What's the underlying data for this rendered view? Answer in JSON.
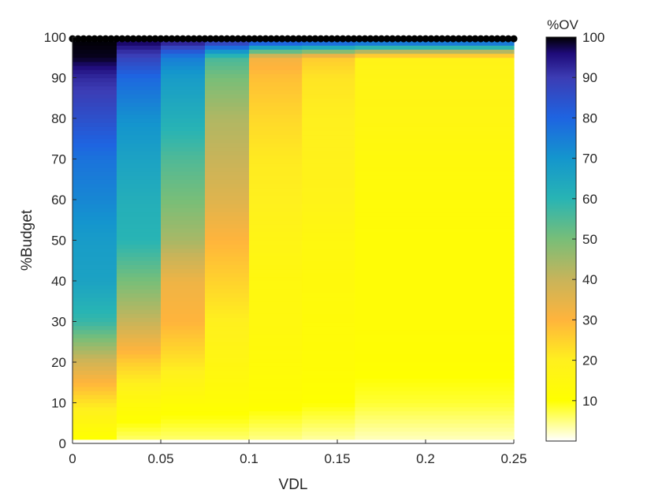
{
  "chart_data": {
    "type": "heatmap",
    "title": "",
    "xlabel": "VDL",
    "ylabel": "%Budget",
    "xlim": [
      0,
      0.25
    ],
    "ylim": [
      0,
      100
    ],
    "x_ticks": [
      0,
      0.05,
      0.1,
      0.15,
      0.2,
      0.25
    ],
    "x_tick_labels": [
      "0",
      "0.05",
      "0.1",
      "0.15",
      "0.2",
      "0.25"
    ],
    "y_ticks": [
      0,
      10,
      20,
      30,
      40,
      50,
      60,
      70,
      80,
      90,
      100
    ],
    "y_tick_labels": [
      "0",
      "10",
      "20",
      "30",
      "40",
      "50",
      "60",
      "70",
      "80",
      "90",
      "100"
    ],
    "colorbar": {
      "title": "%OV",
      "range": [
        0,
        100
      ],
      "ticks": [
        10,
        20,
        30,
        40,
        50,
        60,
        70,
        80,
        90,
        100
      ],
      "tick_labels": [
        "10",
        "20",
        "30",
        "40",
        "50",
        "60",
        "70",
        "80",
        "90",
        "100"
      ],
      "colormap_stops": [
        {
          "value": 0,
          "color": "#ffffff"
        },
        {
          "value": 10,
          "color": "#ffff00"
        },
        {
          "value": 20,
          "color": "#fff01e"
        },
        {
          "value": 30,
          "color": "#ffb43c"
        },
        {
          "value": 40,
          "color": "#c8b45a"
        },
        {
          "value": 50,
          "color": "#78be78"
        },
        {
          "value": 60,
          "color": "#28b4b4"
        },
        {
          "value": 70,
          "color": "#1496cd"
        },
        {
          "value": 80,
          "color": "#1e64e1"
        },
        {
          "value": 90,
          "color": "#3c3cb4"
        },
        {
          "value": 96,
          "color": "#1e0a78"
        },
        {
          "value": 100,
          "color": "#000000"
        }
      ]
    },
    "vdl_bins": [
      0,
      0.025,
      0.05,
      0.075,
      0.1,
      0.13,
      0.16,
      0.25
    ],
    "ov_matrix_rows_by_budget_step_10": [
      {
        "budget": 0,
        "ov": [
          8,
          5,
          5,
          5,
          4,
          3,
          2
        ]
      },
      {
        "budget": 10,
        "ov": [
          22,
          14,
          12,
          12,
          11,
          10,
          8
        ]
      },
      {
        "budget": 20,
        "ov": [
          38,
          26,
          22,
          16,
          13,
          12,
          11
        ]
      },
      {
        "budget": 30,
        "ov": [
          58,
          40,
          30,
          20,
          15,
          13,
          12
        ]
      },
      {
        "budget": 40,
        "ov": [
          66,
          50,
          33,
          25,
          15,
          14,
          12
        ]
      },
      {
        "budget": 50,
        "ov": [
          68,
          60,
          44,
          30,
          17,
          15,
          12
        ]
      },
      {
        "budget": 60,
        "ov": [
          73,
          62,
          50,
          36,
          20,
          18,
          13
        ]
      },
      {
        "budget": 70,
        "ov": [
          77,
          66,
          55,
          40,
          21,
          19,
          14
        ]
      },
      {
        "budget": 80,
        "ov": [
          85,
          71,
          62,
          43,
          24,
          20,
          16
        ]
      },
      {
        "budget": 90,
        "ov": [
          92,
          79,
          68,
          50,
          28,
          22,
          17
        ]
      },
      {
        "budget": 95,
        "ov": [
          99,
          88,
          75,
          56,
          32,
          26,
          18
        ]
      },
      {
        "budget": 100,
        "ov": [
          100,
          100,
          100,
          100,
          100,
          100,
          100
        ]
      }
    ]
  }
}
